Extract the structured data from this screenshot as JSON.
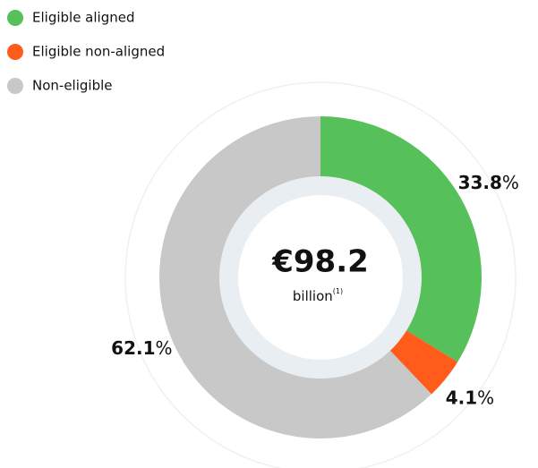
{
  "chart_data": {
    "type": "donut",
    "categories": [
      "Eligible aligned",
      "Eligible non-aligned",
      "Non-eligible"
    ],
    "values": [
      33.8,
      4.1,
      62.1
    ],
    "value_labels": [
      "33.8%",
      "4.1%",
      "62.1%"
    ],
    "colors": [
      "#56c05a",
      "#ff5c1b",
      "#c8c8c8"
    ],
    "center_value": "€98.2",
    "center_label": "billion",
    "center_note": "(1)"
  }
}
